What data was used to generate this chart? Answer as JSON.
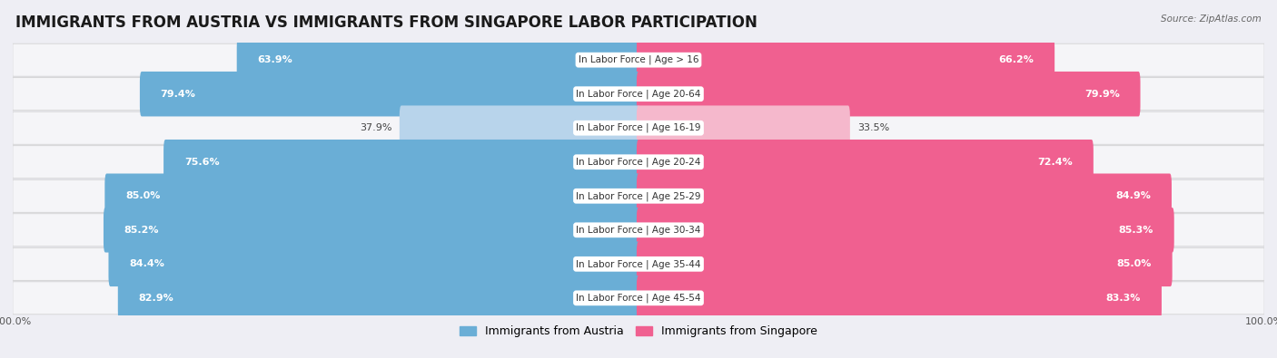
{
  "title": "IMMIGRANTS FROM AUSTRIA VS IMMIGRANTS FROM SINGAPORE LABOR PARTICIPATION",
  "source": "Source: ZipAtlas.com",
  "categories": [
    "In Labor Force | Age > 16",
    "In Labor Force | Age 20-64",
    "In Labor Force | Age 16-19",
    "In Labor Force | Age 20-24",
    "In Labor Force | Age 25-29",
    "In Labor Force | Age 30-34",
    "In Labor Force | Age 35-44",
    "In Labor Force | Age 45-54"
  ],
  "austria_values": [
    63.9,
    79.4,
    37.9,
    75.6,
    85.0,
    85.2,
    84.4,
    82.9
  ],
  "singapore_values": [
    66.2,
    79.9,
    33.5,
    72.4,
    84.9,
    85.3,
    85.0,
    83.3
  ],
  "austria_color": "#6aaed6",
  "austria_color_light": "#b8d4eb",
  "singapore_color": "#f06090",
  "singapore_color_light": "#f5b8cc",
  "bg_color": "#eeeef4",
  "row_bg_odd": "#f5f5f8",
  "row_bg_even": "#e8e8ee",
  "max_value": 100.0,
  "legend_austria": "Immigrants from Austria",
  "legend_singapore": "Immigrants from Singapore",
  "title_fontsize": 12,
  "value_fontsize": 8,
  "cat_fontsize": 7.5
}
